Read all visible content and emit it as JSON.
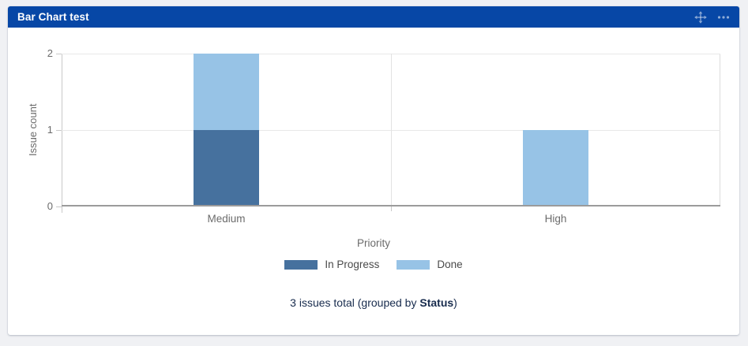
{
  "gadget": {
    "title": "Bar Chart test",
    "header_background": "#0747a6",
    "icons": {
      "move": "move-icon",
      "menu": "ellipsis-menu-icon"
    }
  },
  "chart_data": {
    "type": "bar",
    "stacked": true,
    "categories": [
      "Medium",
      "High"
    ],
    "series": [
      {
        "name": "In Progress",
        "color": "#46719e",
        "values": [
          1,
          0
        ]
      },
      {
        "name": "Done",
        "color": "#97c3e6",
        "values": [
          1,
          1
        ]
      }
    ],
    "title": "",
    "xlabel": "Priority",
    "ylabel": "Issue count",
    "ylim": [
      0,
      2
    ],
    "yticks": [
      0,
      1,
      2
    ],
    "grid": true,
    "legend_position": "bottom"
  },
  "footer": {
    "prefix": "3 issues total (grouped by ",
    "group_by": "Status",
    "suffix": ")"
  },
  "colors": {
    "page_background": "#f0f1f4",
    "card_background": "#ffffff",
    "axis_text": "#6b6b6b",
    "gridline": "#e8e8e8",
    "axis_line": "#9b9b9b",
    "footer_text": "#172b4d"
  }
}
